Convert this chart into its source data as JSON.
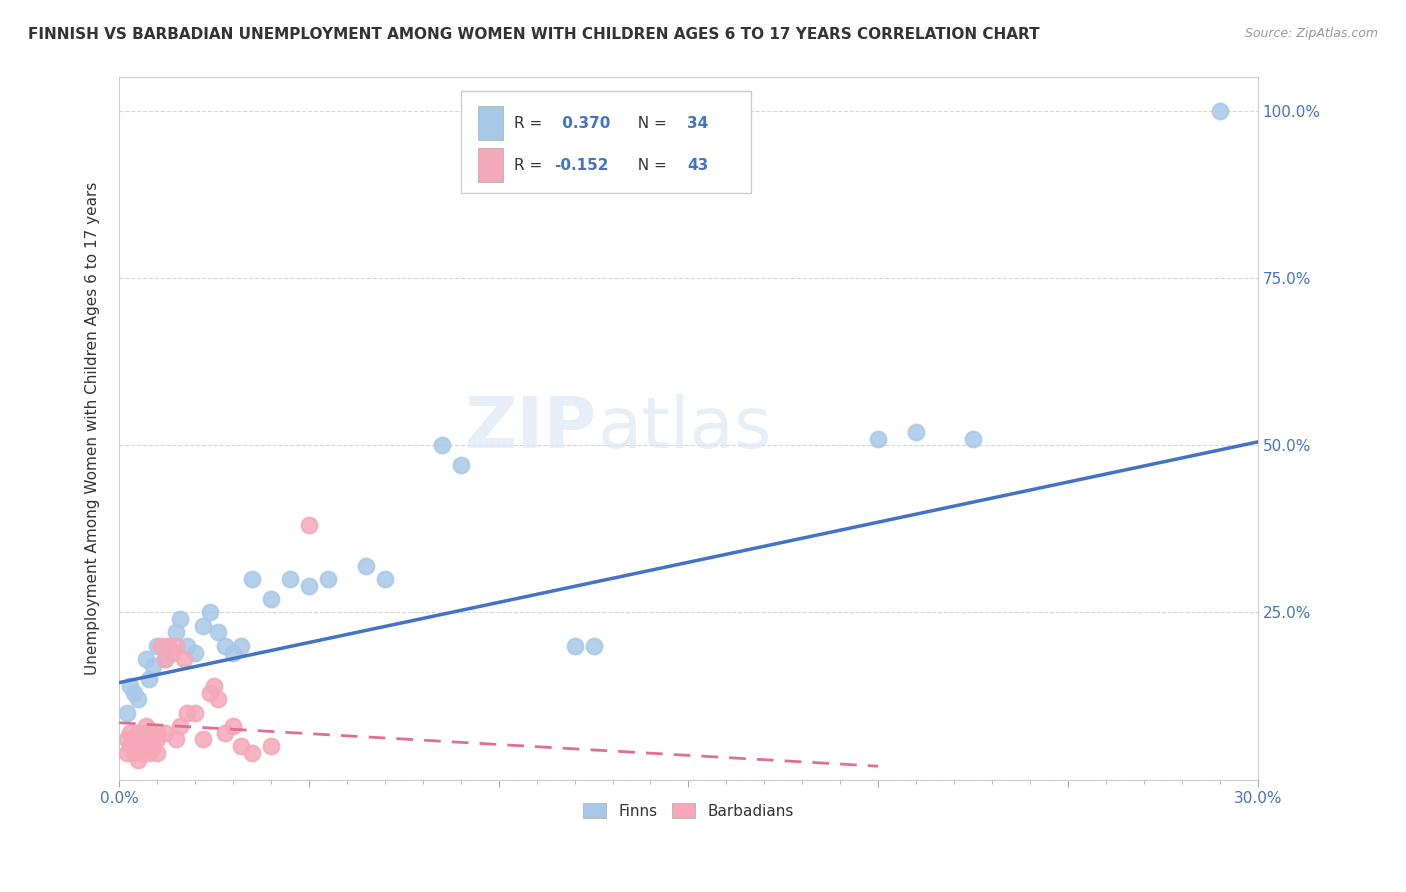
{
  "title": "FINNISH VS BARBADIAN UNEMPLOYMENT AMONG WOMEN WITH CHILDREN AGES 6 TO 17 YEARS CORRELATION CHART",
  "source": "Source: ZipAtlas.com",
  "ylabel": "Unemployment Among Women with Children Ages 6 to 17 years",
  "xlim": [
    0.0,
    0.3
  ],
  "ylim": [
    0.0,
    1.05
  ],
  "xticks": [
    0.0,
    0.05,
    0.1,
    0.15,
    0.2,
    0.25,
    0.3
  ],
  "xticklabels": [
    "0.0%",
    "",
    "",
    "",
    "",
    "",
    "30.0%"
  ],
  "yticks": [
    0.0,
    0.25,
    0.5,
    0.75,
    1.0
  ],
  "yticklabels_right": [
    "",
    "25.0%",
    "50.0%",
    "75.0%",
    "100.0%"
  ],
  "finn_R": 0.37,
  "finn_N": 34,
  "barb_R": -0.152,
  "barb_N": 43,
  "finn_color": "#a8c8e8",
  "barb_color": "#f4a8b8",
  "finn_line_color": "#4472c4",
  "barb_line_color": "#e07090",
  "watermark_zip": "ZIP",
  "watermark_atlas": "atlas",
  "finns_x": [
    0.002,
    0.003,
    0.004,
    0.005,
    0.007,
    0.008,
    0.009,
    0.01,
    0.012,
    0.015,
    0.016,
    0.018,
    0.02,
    0.022,
    0.024,
    0.026,
    0.028,
    0.03,
    0.032,
    0.035,
    0.04,
    0.045,
    0.05,
    0.055,
    0.065,
    0.07,
    0.085,
    0.09,
    0.12,
    0.125,
    0.2,
    0.21,
    0.225,
    0.29
  ],
  "finns_y": [
    0.1,
    0.14,
    0.13,
    0.12,
    0.18,
    0.15,
    0.17,
    0.2,
    0.18,
    0.22,
    0.24,
    0.2,
    0.19,
    0.23,
    0.25,
    0.22,
    0.2,
    0.19,
    0.2,
    0.3,
    0.27,
    0.3,
    0.29,
    0.3,
    0.32,
    0.3,
    0.5,
    0.47,
    0.2,
    0.2,
    0.51,
    0.52,
    0.51,
    1.0
  ],
  "barbadians_x": [
    0.002,
    0.002,
    0.003,
    0.003,
    0.004,
    0.004,
    0.005,
    0.005,
    0.005,
    0.006,
    0.006,
    0.007,
    0.007,
    0.007,
    0.008,
    0.008,
    0.008,
    0.009,
    0.009,
    0.01,
    0.01,
    0.01,
    0.011,
    0.012,
    0.012,
    0.013,
    0.014,
    0.015,
    0.015,
    0.016,
    0.017,
    0.018,
    0.02,
    0.022,
    0.024,
    0.025,
    0.026,
    0.028,
    0.03,
    0.032,
    0.035,
    0.04,
    0.05
  ],
  "barbadians_y": [
    0.04,
    0.06,
    0.05,
    0.07,
    0.04,
    0.06,
    0.05,
    0.07,
    0.03,
    0.06,
    0.04,
    0.07,
    0.05,
    0.08,
    0.06,
    0.04,
    0.07,
    0.05,
    0.06,
    0.07,
    0.04,
    0.06,
    0.2,
    0.18,
    0.07,
    0.2,
    0.19,
    0.2,
    0.06,
    0.08,
    0.18,
    0.1,
    0.1,
    0.06,
    0.13,
    0.14,
    0.12,
    0.07,
    0.08,
    0.05,
    0.04,
    0.05,
    0.38
  ],
  "finn_line_x": [
    0.0,
    0.3
  ],
  "finn_line_y": [
    0.145,
    0.505
  ],
  "barb_line_x": [
    0.0,
    0.2
  ],
  "barb_line_y": [
    0.085,
    0.02
  ]
}
